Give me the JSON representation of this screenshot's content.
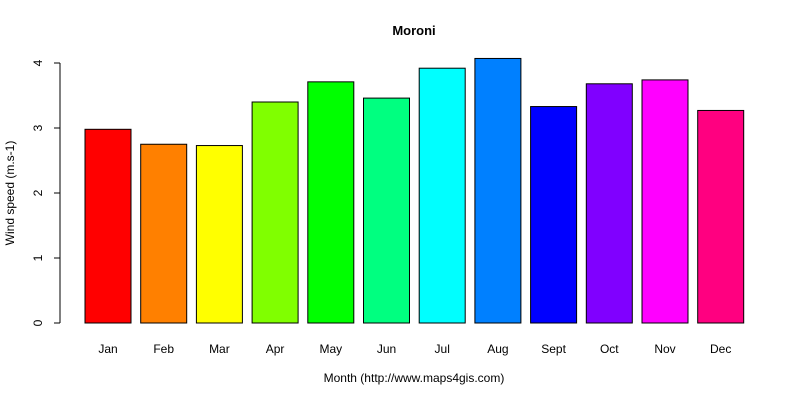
{
  "chart_data": {
    "type": "bar",
    "title": "Moroni",
    "xlabel": "Month (http://www.maps4gis.com)",
    "ylabel": "Wind speed (m.s-1)",
    "categories": [
      "Jan",
      "Feb",
      "Mar",
      "Apr",
      "May",
      "Jun",
      "Jul",
      "Aug",
      "Sept",
      "Oct",
      "Nov",
      "Dec"
    ],
    "values": [
      2.98,
      2.75,
      2.73,
      3.4,
      3.71,
      3.46,
      3.92,
      4.07,
      3.33,
      3.68,
      3.74,
      3.27
    ],
    "colors": [
      "#FF0000",
      "#FF8000",
      "#FFFF00",
      "#80FF00",
      "#00FF00",
      "#00FF80",
      "#00FFFF",
      "#0080FF",
      "#0000FF",
      "#8000FF",
      "#FF00FF",
      "#FF0080"
    ],
    "yticks": [
      0,
      1,
      2,
      3,
      4
    ],
    "ylim": [
      0,
      4
    ],
    "grid": false,
    "legend": "none"
  }
}
